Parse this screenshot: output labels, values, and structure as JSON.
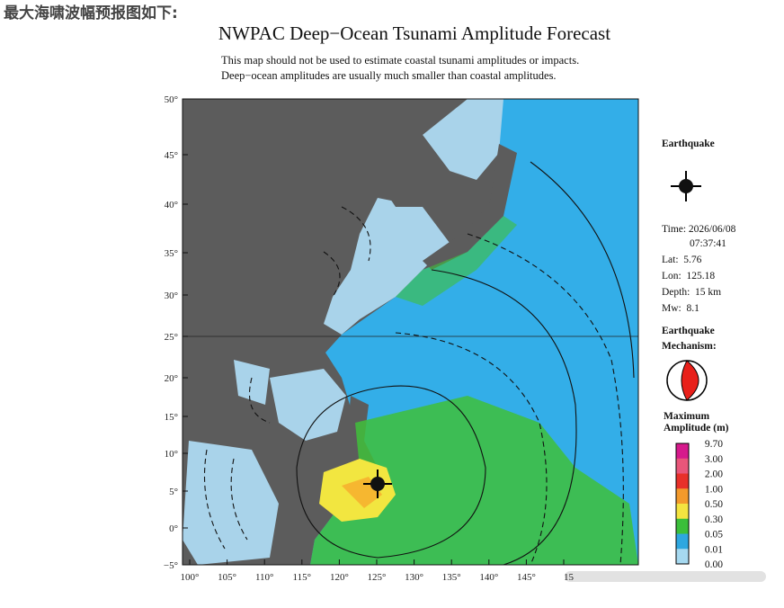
{
  "header": {
    "caption": "最大海啸波幅预报图如下:",
    "title": "NWPAC Deep−Ocean Tsunami Amplitude Forecast",
    "notes": [
      "This map should not be used to estimate coastal tsunami amplitudes or impacts.",
      "Deep−ocean amplitudes are usually much smaller than coastal amplitudes."
    ]
  },
  "map": {
    "lat_labels": [
      "50°",
      "45°",
      "40°",
      "35°",
      "30°",
      "25°",
      "20°",
      "15°",
      "10°",
      "5°",
      "0°",
      "−5°"
    ],
    "lon_labels": [
      "100°",
      "105°",
      "110°",
      "115°",
      "120°",
      "125°",
      "130°",
      "135°",
      "140°",
      "145°",
      "15"
    ]
  },
  "sidebar": {
    "earthquake_heading": "Earthquake",
    "time_label": "Time: 2026/06/08",
    "time_value": "07:37:41",
    "lat": "Lat:  5.76",
    "lon": "Lon:  125.18",
    "depth": "Depth:  15 km",
    "mw": "Mw:  8.1",
    "mechanism_heading": [
      "Earthquake",
      "Mechanism:"
    ],
    "amplitude_heading": [
      "Maximum",
      "Amplitude (m)"
    ],
    "scale_labels": [
      "9.70",
      "3.00",
      "2.00",
      "1.00",
      "0.50",
      "0.30",
      "0.05",
      "0.01",
      "0.00"
    ]
  }
}
